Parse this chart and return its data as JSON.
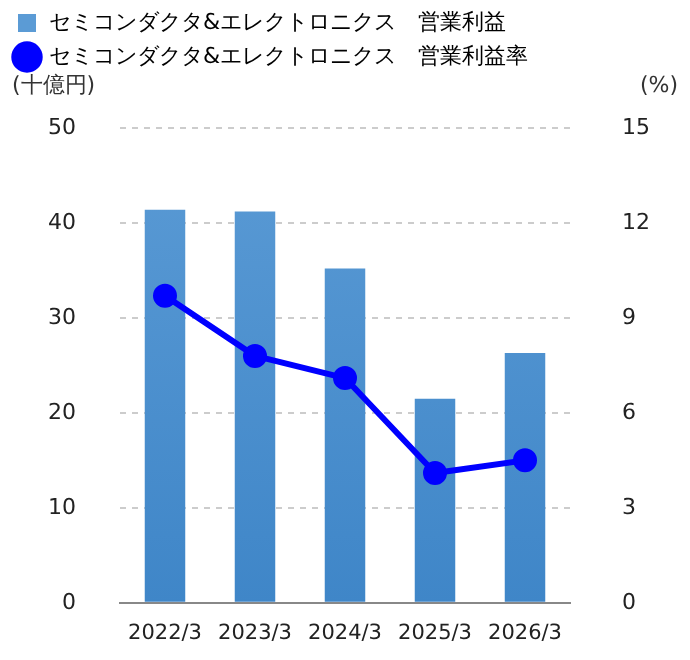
{
  "chart_data": {
    "type": "bar",
    "ylabel": "(十億円)",
    "y2label": "(%)",
    "categories": [
      "2022/3",
      "2023/3",
      "2024/3",
      "2025/3",
      "2026/3"
    ],
    "series": [
      {
        "name": "セミコンダクタ&エレクトロニクス　営業利益",
        "color": "#5b9bd5",
        "values": [
          41.4,
          41.2,
          35.2,
          21.5,
          26.3
        ]
      },
      {
        "name": "セミコンダクタ&エレクトロニクス　営業利益率",
        "type": "line",
        "axis": "y2",
        "color": "#0000ff",
        "values": [
          9.7,
          7.8,
          7.1,
          4.1,
          4.5
        ]
      }
    ],
    "ylim": [
      0,
      50
    ],
    "yticks": [
      0,
      10,
      20,
      30,
      40,
      50
    ],
    "y2lim": [
      0,
      15
    ],
    "y2ticks": [
      0,
      3,
      6,
      9,
      12,
      15
    ],
    "grid": "y",
    "legend": "top",
    "marker": "circle",
    "line_style": "solid"
  }
}
